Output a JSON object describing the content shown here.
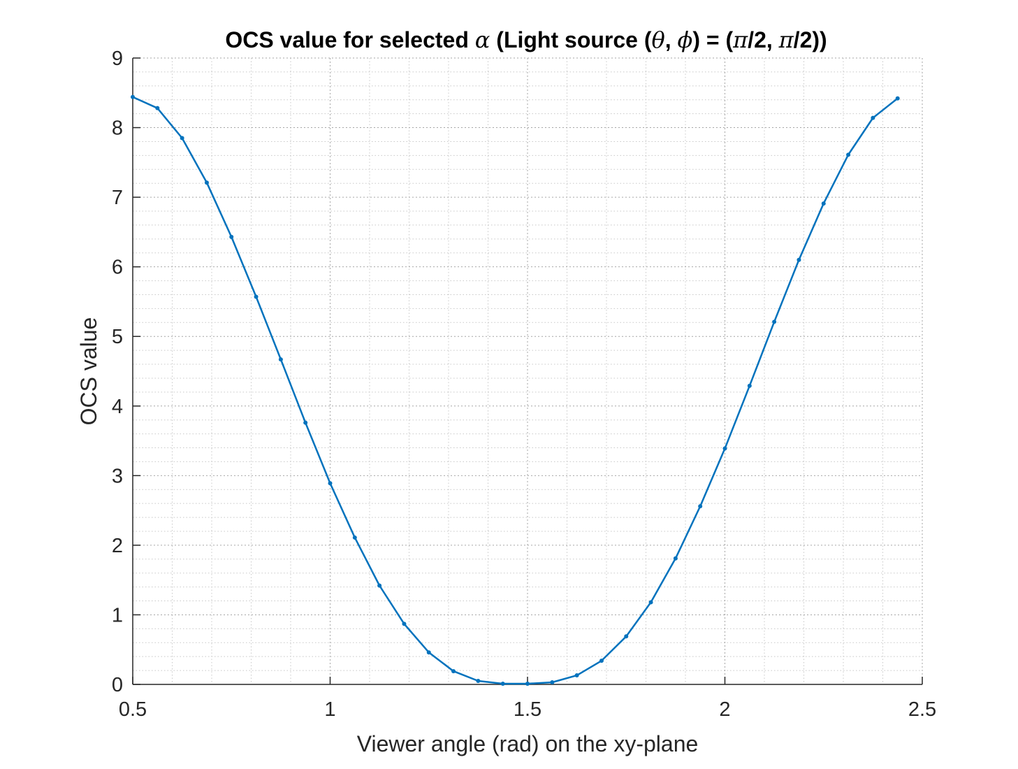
{
  "chart_data": {
    "type": "line",
    "title": {
      "prefix": "OCS value for selected ",
      "alpha": "α",
      "mid1": " (Light source (",
      "theta": "θ",
      "comma": ", ",
      "phi": "ϕ",
      "mid2": ") = (",
      "pi1": "π",
      "mid3": "/2, ",
      "pi2": "π",
      "suffix": "/2))"
    },
    "xlabel": "Viewer angle (rad) on the xy-plane",
    "ylabel": "OCS value",
    "xlim": [
      0.5,
      2.5
    ],
    "ylim": [
      0,
      9
    ],
    "xticks": [
      0.5,
      1,
      1.5,
      2,
      2.5
    ],
    "xtick_labels": [
      "0.5",
      "1",
      "1.5",
      "2",
      "2.5"
    ],
    "yticks": [
      0,
      1,
      2,
      3,
      4,
      5,
      6,
      7,
      8,
      9
    ],
    "ytick_labels": [
      "0",
      "1",
      "2",
      "3",
      "4",
      "5",
      "6",
      "7",
      "8",
      "9"
    ],
    "grid": true,
    "minor_grid": true,
    "line_color": "#0072BD",
    "series": [
      {
        "x": [
          0.5,
          0.5625,
          0.625,
          0.6875,
          0.75,
          0.8125,
          0.875,
          0.9375,
          1.0,
          1.0625,
          1.125,
          1.1875,
          1.25,
          1.3125,
          1.375,
          1.4375,
          1.5,
          1.5625,
          1.625,
          1.6875,
          1.75,
          1.8125,
          1.875,
          1.9375,
          2.0,
          2.0625,
          2.125,
          2.1875,
          2.25,
          2.3125,
          2.375,
          2.4375
        ],
        "y": [
          8.44,
          8.28,
          7.85,
          7.21,
          6.43,
          5.57,
          4.67,
          3.76,
          2.89,
          2.11,
          1.42,
          0.87,
          0.46,
          0.19,
          0.05,
          0.01,
          0.01,
          0.03,
          0.13,
          0.34,
          0.69,
          1.18,
          1.81,
          2.56,
          3.39,
          4.29,
          5.21,
          6.1,
          6.91,
          7.61,
          8.14,
          8.42
        ]
      }
    ]
  }
}
